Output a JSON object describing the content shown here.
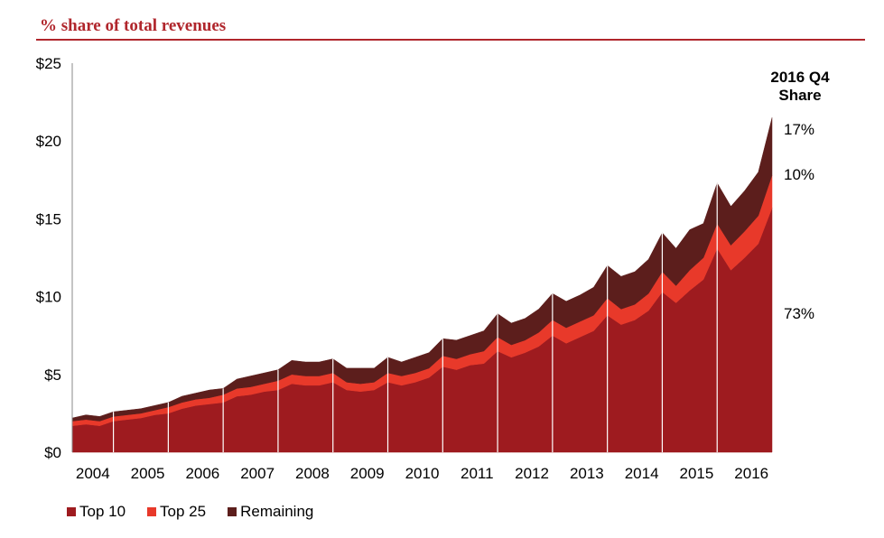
{
  "title": "% share of total revenues",
  "chart_data": {
    "type": "area",
    "stacked": true,
    "ylim": [
      0,
      25
    ],
    "yticks": [
      "$0",
      "$5",
      "$10",
      "$15",
      "$20",
      "$25"
    ],
    "ytick_values": [
      0,
      5,
      10,
      15,
      20,
      25
    ],
    "year_labels": [
      "2004",
      "2005",
      "2006",
      "2007",
      "2008",
      "2009",
      "2010",
      "2011",
      "2012",
      "2013",
      "2014",
      "2015",
      "2016"
    ],
    "quarters": [
      "2004 Q1",
      "2004 Q2",
      "2004 Q3",
      "2004 Q4",
      "2005 Q1",
      "2005 Q2",
      "2005 Q3",
      "2005 Q4",
      "2006 Q1",
      "2006 Q2",
      "2006 Q3",
      "2006 Q4",
      "2007 Q1",
      "2007 Q2",
      "2007 Q3",
      "2007 Q4",
      "2008 Q1",
      "2008 Q2",
      "2008 Q3",
      "2008 Q4",
      "2009 Q1",
      "2009 Q2",
      "2009 Q3",
      "2009 Q4",
      "2010 Q1",
      "2010 Q2",
      "2010 Q3",
      "2010 Q4",
      "2011 Q1",
      "2011 Q2",
      "2011 Q3",
      "2011 Q4",
      "2012 Q1",
      "2012 Q2",
      "2012 Q3",
      "2012 Q4",
      "2013 Q1",
      "2013 Q2",
      "2013 Q3",
      "2013 Q4",
      "2014 Q1",
      "2014 Q2",
      "2014 Q3",
      "2014 Q4",
      "2015 Q1",
      "2015 Q2",
      "2015 Q3",
      "2015 Q4",
      "2016 Q1",
      "2016 Q2",
      "2016 Q3",
      "2016 Q4"
    ],
    "totals": [
      2.2,
      2.4,
      2.3,
      2.6,
      2.7,
      2.8,
      3.0,
      3.2,
      3.6,
      3.8,
      4.0,
      4.1,
      4.7,
      4.9,
      5.1,
      5.3,
      5.9,
      5.8,
      5.8,
      6.0,
      5.4,
      5.4,
      5.4,
      6.1,
      5.8,
      6.1,
      6.4,
      7.3,
      7.2,
      7.5,
      7.8,
      8.9,
      8.3,
      8.6,
      9.2,
      10.2,
      9.7,
      10.1,
      10.6,
      12.0,
      11.3,
      11.6,
      12.4,
      14.1,
      13.1,
      14.3,
      14.7,
      17.3,
      15.8,
      16.8,
      18.0,
      21.5
    ],
    "series": [
      {
        "name": "Top 10",
        "color": "#9e1b1f",
        "values": [
          1.7,
          1.8,
          1.7,
          2.0,
          2.1,
          2.2,
          2.4,
          2.5,
          2.8,
          3.0,
          3.1,
          3.2,
          3.6,
          3.7,
          3.9,
          4.0,
          4.4,
          4.3,
          4.3,
          4.5,
          4.0,
          3.9,
          4.0,
          4.5,
          4.3,
          4.5,
          4.8,
          5.5,
          5.3,
          5.6,
          5.7,
          6.5,
          6.1,
          6.4,
          6.8,
          7.5,
          7.0,
          7.4,
          7.8,
          8.8,
          8.2,
          8.5,
          9.1,
          10.3,
          9.6,
          10.4,
          11.1,
          13.1,
          11.7,
          12.5,
          13.4,
          15.7
        ]
      },
      {
        "name": "Top 25",
        "color": "#e8392a",
        "values": [
          0.3,
          0.3,
          0.3,
          0.3,
          0.3,
          0.3,
          0.3,
          0.4,
          0.4,
          0.4,
          0.4,
          0.5,
          0.5,
          0.5,
          0.5,
          0.6,
          0.6,
          0.6,
          0.6,
          0.6,
          0.5,
          0.5,
          0.5,
          0.6,
          0.6,
          0.6,
          0.6,
          0.7,
          0.7,
          0.7,
          0.8,
          0.9,
          0.8,
          0.8,
          0.9,
          1.0,
          1.0,
          1.0,
          1.0,
          1.1,
          1.0,
          1.0,
          1.1,
          1.3,
          1.1,
          1.3,
          1.4,
          1.6,
          1.6,
          1.7,
          1.8,
          2.1
        ]
      },
      {
        "name": "Remaining",
        "color": "#5c1e1c",
        "values": [
          0.2,
          0.3,
          0.3,
          0.3,
          0.3,
          0.3,
          0.3,
          0.3,
          0.4,
          0.4,
          0.5,
          0.4,
          0.6,
          0.7,
          0.7,
          0.7,
          0.9,
          0.9,
          0.9,
          0.9,
          0.9,
          1.0,
          0.9,
          1.0,
          0.9,
          1.0,
          1.0,
          1.1,
          1.2,
          1.2,
          1.3,
          1.5,
          1.4,
          1.4,
          1.5,
          1.7,
          1.7,
          1.7,
          1.8,
          2.1,
          2.1,
          2.1,
          2.2,
          2.5,
          2.4,
          2.6,
          2.2,
          2.6,
          2.5,
          2.6,
          2.8,
          3.7
        ]
      }
    ],
    "share_header": "2016 Q4 Share",
    "share_header_lines": [
      "2016 Q4",
      "Share"
    ],
    "shares": [
      "17%",
      "10%",
      "73%"
    ],
    "legend_position": "bottom-left",
    "grid": false
  }
}
